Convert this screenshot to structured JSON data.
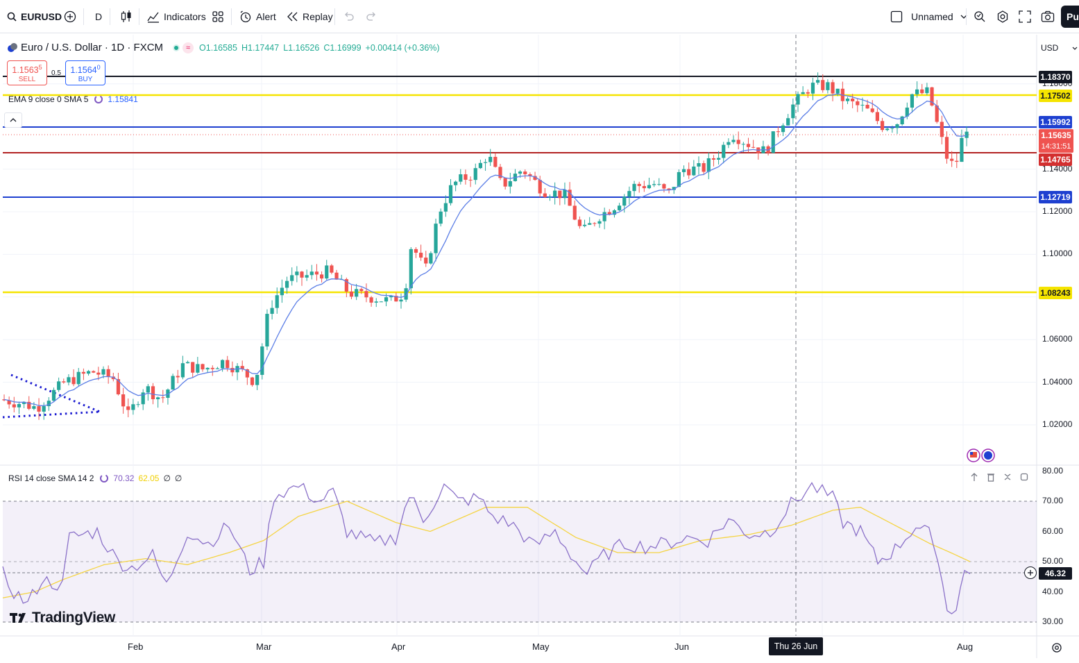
{
  "toolbar": {
    "symbol": "EURUSD",
    "interval": "D",
    "indicators_label": "Indicators",
    "alert_label": "Alert",
    "replay_label": "Replay",
    "layout_name": "Unnamed",
    "publish_label": "Pu"
  },
  "legend": {
    "symbol_title": "Euro / U.S. Dollar · 1D · FXCM",
    "open": "O1.16585",
    "high": "H1.17447",
    "low": "L1.16526",
    "close": "C1.16999",
    "change": "+0.00414 (+0.36%)",
    "sell_price_main": "1.1563",
    "sell_price_small": "5",
    "sell_label": "SELL",
    "spread": "0.5",
    "buy_price_main": "1.1564",
    "buy_price_small": "0",
    "buy_label": "BUY",
    "ema_label": "EMA 9 close 0 SMA 5",
    "ema_value": "1.15841"
  },
  "rsi_legend": {
    "label": "RSI 14 close SMA 14 2",
    "rsi_value": "70.32",
    "sma_value": "62.05",
    "extra1": "∅",
    "extra2": "∅"
  },
  "currency": "USD",
  "price_axis": [
    "1.18000",
    "1.16000",
    "1.14000",
    "1.12000",
    "1.10000",
    "1.08000",
    "1.06000",
    "1.04000",
    "1.02000"
  ],
  "rsi_axis": [
    "80.00",
    "70.00",
    "60.00",
    "50.00",
    "40.00",
    "30.00"
  ],
  "price_tags": {
    "black": "1.18370",
    "yellow_top": "1.17502",
    "blue_top": "1.15992",
    "current": "1.15635",
    "countdown": "14:31:51",
    "red": "1.14765",
    "blue_bottom": "1.12719",
    "yellow_bottom": "1.08243"
  },
  "rsi_tag": "46.32",
  "date_axis": {
    "feb": "Feb",
    "mar": "Mar",
    "apr": "Apr",
    "may": "May",
    "jun": "Jun",
    "aug": "Aug",
    "crosshair": "Thu 26 Jun '25"
  },
  "watermark": "TradingView",
  "colors": {
    "up": "#26a69a",
    "down": "#ef5350",
    "ema": "#2962ff",
    "rsi": "#7e57c2",
    "rsi_sma": "#f5d442",
    "hline_black": "#131722",
    "hline_yellow": "#f5e400",
    "hline_blue": "#1e40d0",
    "hline_red": "#b22222"
  }
}
